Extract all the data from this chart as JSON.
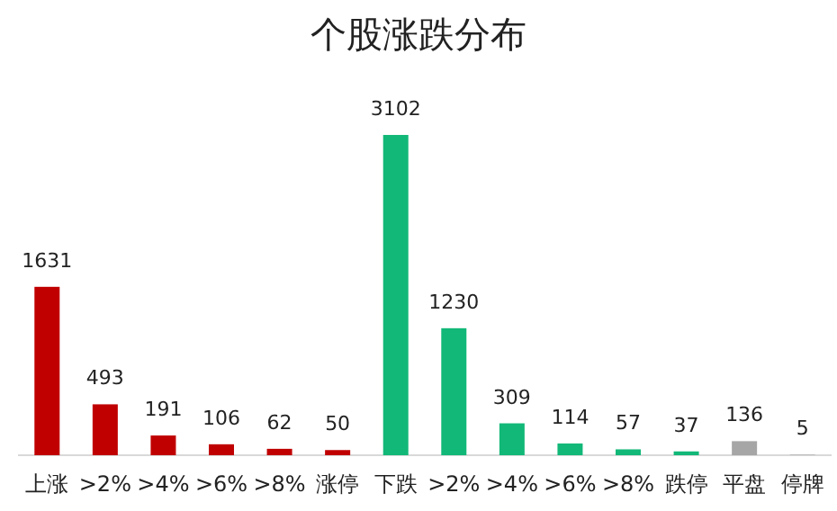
{
  "chart_data": {
    "type": "bar",
    "title": "个股涨跌分布",
    "categories": [
      "上涨",
      ">2%",
      ">4%",
      ">6%",
      ">8%",
      "涨停",
      "下跌",
      ">2%",
      ">4%",
      ">6%",
      ">8%",
      "跌停",
      "平盘",
      "停牌"
    ],
    "values": [
      1631,
      493,
      191,
      106,
      62,
      50,
      3102,
      1230,
      309,
      114,
      57,
      37,
      136,
      5
    ],
    "colors": [
      "#c00000",
      "#c00000",
      "#c00000",
      "#c00000",
      "#c00000",
      "#c00000",
      "#12b878",
      "#12b878",
      "#12b878",
      "#12b878",
      "#12b878",
      "#12b878",
      "#a6a6a6",
      "#a6a6a6"
    ],
    "data_labels": true
  }
}
